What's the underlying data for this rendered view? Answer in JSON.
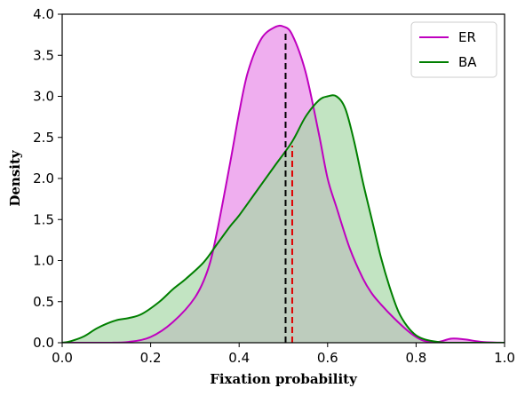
{
  "chart_data": {
    "type": "area",
    "title": "",
    "xlabel": "Fixation probability",
    "ylabel": "Density",
    "xlim": [
      0.0,
      1.0
    ],
    "ylim": [
      0.0,
      4.0
    ],
    "xticks": [
      "0.0",
      "0.2",
      "0.4",
      "0.6",
      "0.8",
      "1.0"
    ],
    "yticks": [
      "0.0",
      "0.5",
      "1.0",
      "1.5",
      "2.0",
      "2.5",
      "3.0",
      "3.5",
      "4.0"
    ],
    "grid": false,
    "legend_position": "top-right",
    "series": [
      {
        "name": "ER",
        "color": "#bf00bf",
        "fill": "#e88ce8",
        "mean_line": {
          "x": 0.505,
          "y_top": 3.78,
          "color": "#000000"
        },
        "points": [
          [
            0.0,
            0.0
          ],
          [
            0.1,
            0.0
          ],
          [
            0.15,
            0.01
          ],
          [
            0.2,
            0.07
          ],
          [
            0.25,
            0.25
          ],
          [
            0.3,
            0.55
          ],
          [
            0.33,
            0.9
          ],
          [
            0.35,
            1.35
          ],
          [
            0.38,
            2.2
          ],
          [
            0.4,
            2.8
          ],
          [
            0.42,
            3.3
          ],
          [
            0.45,
            3.7
          ],
          [
            0.48,
            3.84
          ],
          [
            0.5,
            3.85
          ],
          [
            0.52,
            3.75
          ],
          [
            0.55,
            3.3
          ],
          [
            0.58,
            2.55
          ],
          [
            0.6,
            2.0
          ],
          [
            0.62,
            1.65
          ],
          [
            0.65,
            1.15
          ],
          [
            0.68,
            0.78
          ],
          [
            0.7,
            0.6
          ],
          [
            0.72,
            0.47
          ],
          [
            0.75,
            0.3
          ],
          [
            0.78,
            0.15
          ],
          [
            0.8,
            0.07
          ],
          [
            0.82,
            0.02
          ],
          [
            0.85,
            0.01
          ],
          [
            0.88,
            0.05
          ],
          [
            0.91,
            0.04
          ],
          [
            0.95,
            0.01
          ],
          [
            1.0,
            0.0
          ]
        ]
      },
      {
        "name": "BA",
        "color": "#007f00",
        "fill": "#a8d8a8",
        "mean_line": {
          "x": 0.52,
          "y_top": 2.4,
          "color": "#e00000"
        },
        "points": [
          [
            0.0,
            0.0
          ],
          [
            0.02,
            0.02
          ],
          [
            0.05,
            0.08
          ],
          [
            0.08,
            0.18
          ],
          [
            0.12,
            0.27
          ],
          [
            0.15,
            0.3
          ],
          [
            0.18,
            0.35
          ],
          [
            0.22,
            0.5
          ],
          [
            0.25,
            0.65
          ],
          [
            0.28,
            0.78
          ],
          [
            0.32,
            0.98
          ],
          [
            0.35,
            1.2
          ],
          [
            0.38,
            1.42
          ],
          [
            0.4,
            1.55
          ],
          [
            0.44,
            1.85
          ],
          [
            0.48,
            2.15
          ],
          [
            0.52,
            2.45
          ],
          [
            0.55,
            2.75
          ],
          [
            0.58,
            2.95
          ],
          [
            0.6,
            3.0
          ],
          [
            0.62,
            3.0
          ],
          [
            0.64,
            2.85
          ],
          [
            0.66,
            2.45
          ],
          [
            0.68,
            1.95
          ],
          [
            0.7,
            1.5
          ],
          [
            0.72,
            1.05
          ],
          [
            0.74,
            0.68
          ],
          [
            0.76,
            0.38
          ],
          [
            0.78,
            0.2
          ],
          [
            0.8,
            0.09
          ],
          [
            0.82,
            0.04
          ],
          [
            0.85,
            0.01
          ],
          [
            0.88,
            0.0
          ],
          [
            1.0,
            0.0
          ]
        ]
      }
    ]
  }
}
